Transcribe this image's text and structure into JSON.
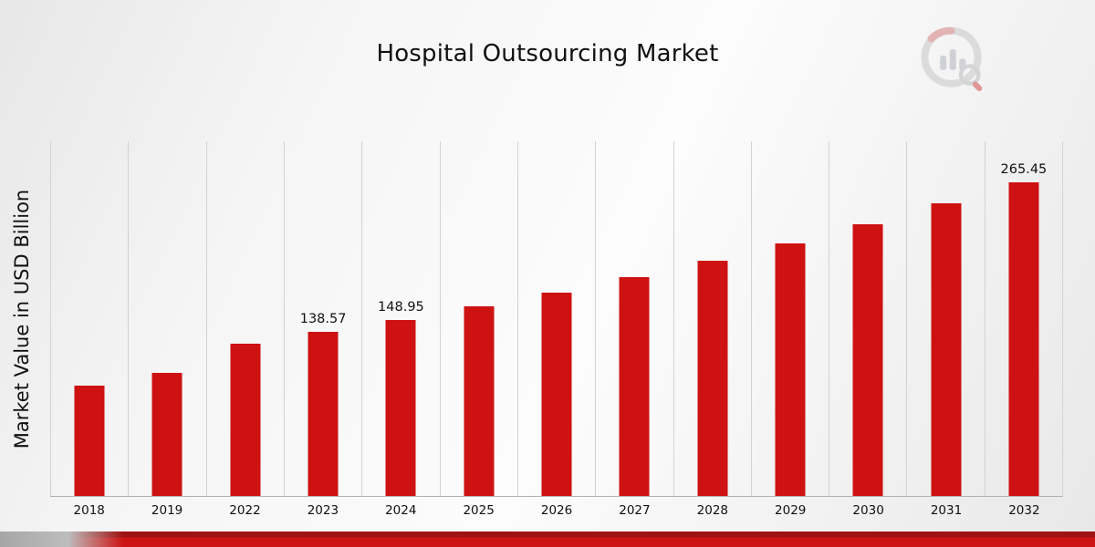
{
  "chart_data": {
    "type": "bar",
    "title": "Hospital Outsourcing Market",
    "ylabel": "Market Value in USD Billion",
    "xlabel": "",
    "categories": [
      "2018",
      "2019",
      "2022",
      "2023",
      "2024",
      "2025",
      "2026",
      "2027",
      "2028",
      "2029",
      "2030",
      "2031",
      "2032"
    ],
    "values": [
      93.0,
      104.2,
      128.9,
      138.57,
      148.95,
      160.1,
      172.2,
      185.1,
      199.0,
      213.9,
      230.0,
      247.2,
      265.45
    ],
    "data_labels": {
      "2023": "138.57",
      "2024": "148.95",
      "2032": "265.45"
    },
    "ylim": [
      0,
      300
    ],
    "bar_color": "#CE1212",
    "grid": "vertical-only",
    "legend": "none"
  },
  "branding": {
    "logo_icon": "bar-chart-magnifier-logo",
    "accent_red": "#CD1414",
    "accent_gray": "#B0B0B0"
  }
}
